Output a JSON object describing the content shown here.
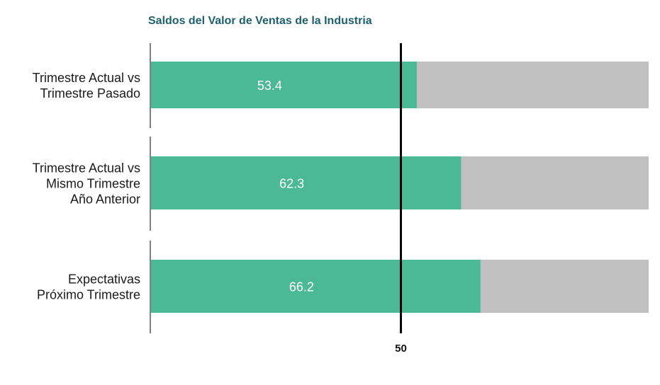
{
  "chart_data": {
    "type": "bar",
    "title": "Saldos del Valor de Ventas de la Industria",
    "orientation": "horizontal",
    "categories": [
      [
        "Trimestre Actual vs",
        "Trimestre Pasado"
      ],
      [
        "Trimestre Actual vs",
        "Mismo Trimestre",
        "Año Anterior"
      ],
      [
        "Expectativas",
        "Próximo Trimestre"
      ]
    ],
    "values": [
      53.4,
      62.3,
      66.2
    ],
    "xlim": [
      0,
      100
    ],
    "reference_line": {
      "value": 50,
      "label": "50"
    },
    "grid": false,
    "colors": {
      "bar": "#4bb896",
      "background_bar": "#c0c0c0",
      "reference": "#000000",
      "title": "#1e5f6e"
    }
  }
}
